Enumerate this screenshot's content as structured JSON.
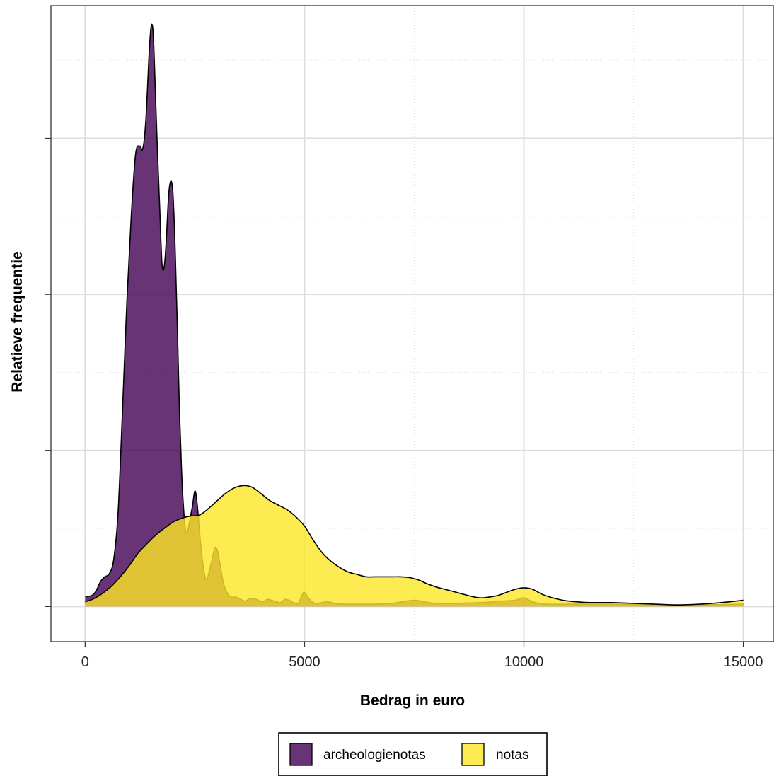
{
  "chart_data": {
    "type": "area",
    "xlabel": "Bedrag in euro",
    "ylabel": "Relatieve frequentie",
    "xlim": [
      -780,
      15700
    ],
    "ylim": [
      -0.45,
      7.7
    ],
    "x_ticks": [
      0,
      5000,
      10000,
      15000
    ],
    "x_tick_labels": [
      "0",
      "5000",
      "10000",
      "15000"
    ],
    "y_ticks": [
      0,
      2,
      4,
      6
    ],
    "y_tick_labels": [
      "",
      "",
      "",
      ""
    ],
    "grid": true,
    "legend_position": "bottom",
    "series": [
      {
        "name": "archeologienotas",
        "color": "#440154",
        "x": [
          0,
          150,
          250,
          350,
          450,
          550,
          650,
          750,
          850,
          950,
          1050,
          1150,
          1250,
          1300,
          1350,
          1400,
          1450,
          1500,
          1550,
          1600,
          1650,
          1700,
          1750,
          1800,
          1850,
          1900,
          1950,
          2000,
          2050,
          2100,
          2150,
          2200,
          2250,
          2300,
          2350,
          2400,
          2450,
          2500,
          2550,
          2650,
          2750,
          2850,
          2950,
          3000,
          3050,
          3150,
          3250,
          3350,
          3450,
          3550,
          3650,
          3750,
          3850,
          3950,
          4050,
          4150,
          4250,
          4350,
          4450,
          4550,
          4650,
          4750,
          4850,
          4950,
          5000,
          5100,
          5200,
          5300,
          5500,
          5700,
          6000,
          6500,
          7000,
          7500,
          8000,
          9000,
          9500,
          9800,
          10000,
          10200,
          10500,
          11000,
          12000,
          13000,
          14000,
          15000
        ],
        "y": [
          0.13,
          0.14,
          0.2,
          0.32,
          0.38,
          0.42,
          0.6,
          1.2,
          2.5,
          3.9,
          5.0,
          5.8,
          5.9,
          5.85,
          6.0,
          6.4,
          7.0,
          7.42,
          7.35,
          6.6,
          5.8,
          5.1,
          4.4,
          4.35,
          4.7,
          5.25,
          5.45,
          5.3,
          4.6,
          3.6,
          2.5,
          1.7,
          1.2,
          0.95,
          1.0,
          1.15,
          1.3,
          1.48,
          1.33,
          0.7,
          0.35,
          0.5,
          0.74,
          0.74,
          0.62,
          0.3,
          0.16,
          0.12,
          0.12,
          0.09,
          0.07,
          0.1,
          0.1,
          0.08,
          0.06,
          0.09,
          0.08,
          0.06,
          0.05,
          0.09,
          0.08,
          0.05,
          0.04,
          0.15,
          0.18,
          0.1,
          0.05,
          0.04,
          0.06,
          0.04,
          0.03,
          0.03,
          0.04,
          0.08,
          0.04,
          0.05,
          0.07,
          0.08,
          0.11,
          0.06,
          0.03,
          0.03,
          0.03,
          0.02,
          0.02,
          0.03
        ]
      },
      {
        "name": "notas",
        "color": "#fde725",
        "x": [
          0,
          200,
          400,
          600,
          800,
          1000,
          1200,
          1400,
          1600,
          1800,
          2000,
          2200,
          2400,
          2600,
          2800,
          3000,
          3200,
          3400,
          3600,
          3800,
          4000,
          4200,
          4400,
          4600,
          4800,
          5000,
          5200,
          5400,
          5600,
          5800,
          6000,
          6200,
          6400,
          6600,
          6800,
          7000,
          7200,
          7400,
          7600,
          7800,
          8000,
          8200,
          8400,
          8600,
          8800,
          9000,
          9200,
          9400,
          9600,
          9800,
          10000,
          10200,
          10400,
          10600,
          10800,
          11000,
          11200,
          11500,
          12000,
          12500,
          13000,
          13500,
          14000,
          14500,
          15000
        ],
        "y": [
          0.06,
          0.1,
          0.17,
          0.26,
          0.38,
          0.52,
          0.68,
          0.8,
          0.91,
          1.0,
          1.08,
          1.13,
          1.16,
          1.17,
          1.25,
          1.35,
          1.45,
          1.52,
          1.55,
          1.53,
          1.45,
          1.36,
          1.3,
          1.24,
          1.15,
          1.03,
          0.85,
          0.69,
          0.58,
          0.5,
          0.44,
          0.41,
          0.38,
          0.38,
          0.38,
          0.38,
          0.38,
          0.37,
          0.34,
          0.29,
          0.25,
          0.22,
          0.19,
          0.16,
          0.13,
          0.11,
          0.12,
          0.14,
          0.18,
          0.22,
          0.24,
          0.22,
          0.16,
          0.12,
          0.09,
          0.07,
          0.06,
          0.05,
          0.05,
          0.04,
          0.03,
          0.02,
          0.03,
          0.05,
          0.08
        ]
      }
    ]
  }
}
